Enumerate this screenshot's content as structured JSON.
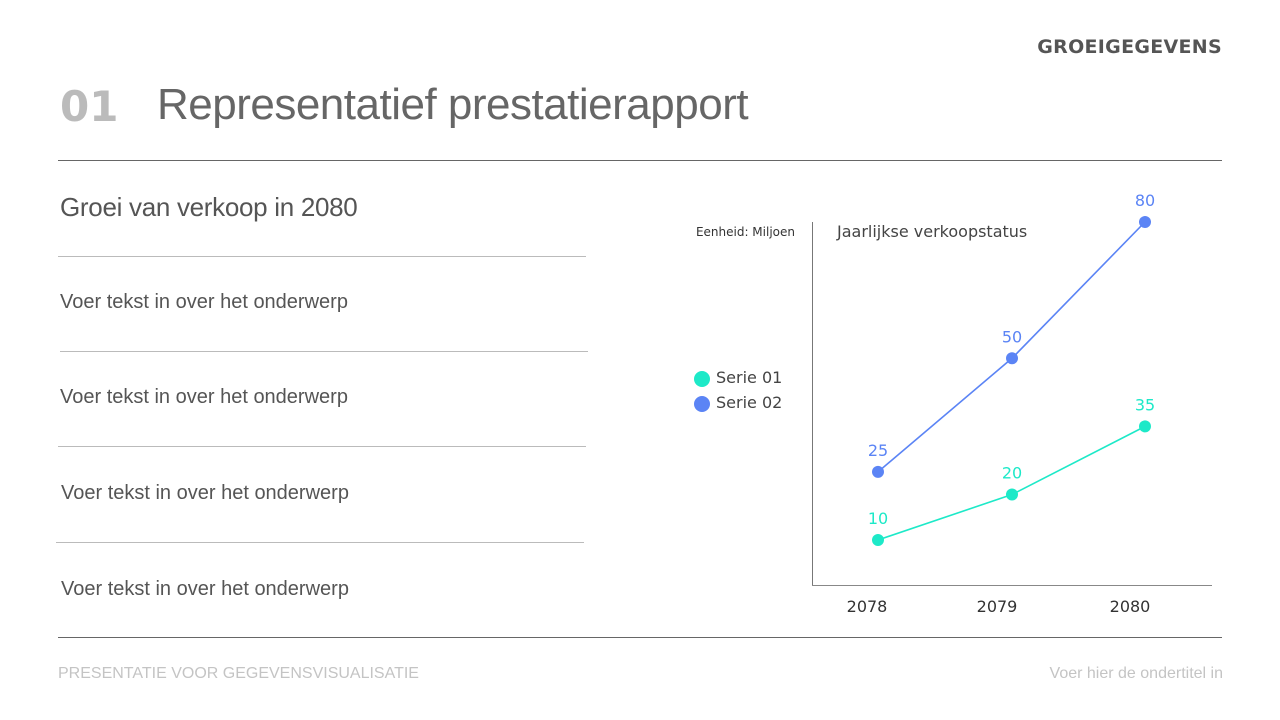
{
  "header": {
    "section": "GROEIGEGEVENS",
    "number": "01",
    "title": "Representatief prestatierapport"
  },
  "left": {
    "heading": "Groei van verkoop in 2080",
    "items": [
      "Voer tekst in over het onderwerp",
      "Voer tekst in over het onderwerp",
      "Voer tekst in over het onderwerp",
      "Voer tekst in over het onderwerp"
    ]
  },
  "footer": {
    "left": "PRESENTATIE VOOR GEGEVENSVISUALISATIE",
    "right": "Voer hier de ondertitel in"
  },
  "chart_data": {
    "type": "line",
    "title": "Jaarlijkse verkoopstatus",
    "unit_label": "Eenheid: Miljoen",
    "categories": [
      "2078",
      "2079",
      "2080"
    ],
    "series": [
      {
        "name": "Serie 01",
        "values": [
          10,
          20,
          35
        ],
        "color": "#1de9c8"
      },
      {
        "name": "Serie 02",
        "values": [
          25,
          50,
          80
        ],
        "color": "#5b84f5"
      }
    ],
    "ylim": [
      0,
      80
    ],
    "grid": false,
    "legend": "left",
    "data_labels": true
  }
}
